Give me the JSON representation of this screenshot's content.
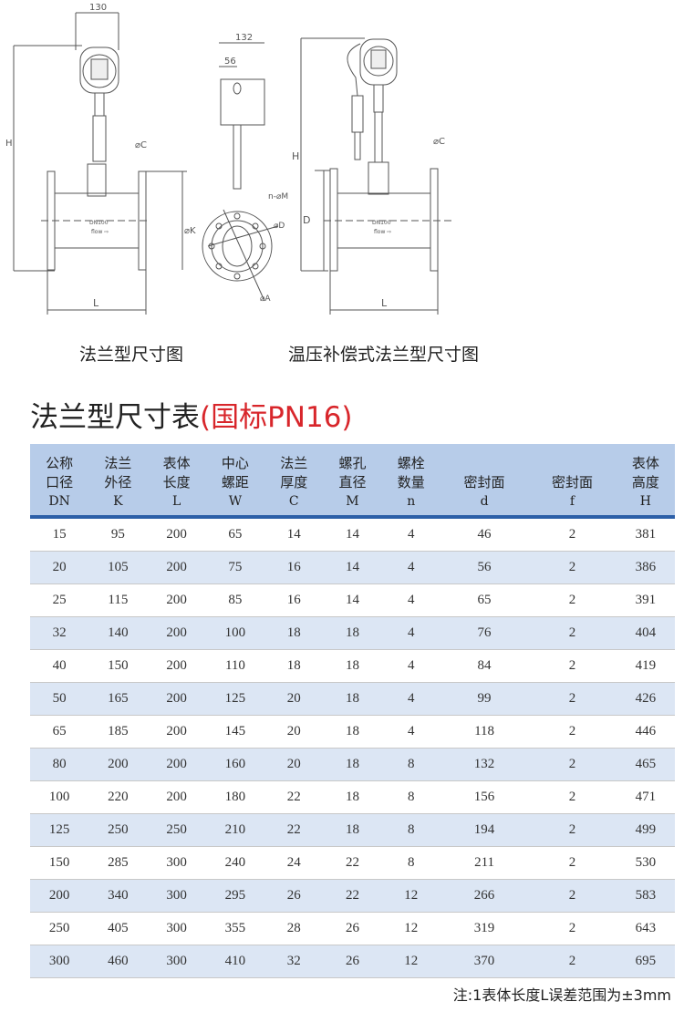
{
  "drawings": {
    "flange_dim_130": "130",
    "side_dim_132": "132",
    "side_dim_56": "56",
    "label_H": "H",
    "label_L": "L",
    "label_C": "⌀C",
    "label_K": "⌀K",
    "label_D": "D",
    "label_phiD": "⌀D",
    "label_nM": "n-⌀M",
    "label_A": "⌀A",
    "pipe_mark": "DN100",
    "flow_mark": "flow ⇨"
  },
  "captions": {
    "flange": "法兰型尺寸图",
    "compensated": "温压补偿式法兰型尺寸图"
  },
  "table_title": {
    "main": "法兰型尺寸表",
    "suffix": "(国标PN16)"
  },
  "table": {
    "headers": [
      {
        "l1": "公称",
        "l2": "口径",
        "sym": "DN"
      },
      {
        "l1": "法兰",
        "l2": "外径",
        "sym": "K"
      },
      {
        "l1": "表体",
        "l2": "长度",
        "sym": "L"
      },
      {
        "l1": "中心",
        "l2": "螺距",
        "sym": "W"
      },
      {
        "l1": "法兰",
        "l2": "厚度",
        "sym": "C"
      },
      {
        "l1": "螺孔",
        "l2": "直径",
        "sym": "M"
      },
      {
        "l1": "螺栓",
        "l2": "数量",
        "sym": "n"
      },
      {
        "l1": "",
        "l2": "密封面",
        "sym": "d"
      },
      {
        "l1": "",
        "l2": "密封面",
        "sym": "f"
      },
      {
        "l1": "表体",
        "l2": "高度",
        "sym": "H"
      }
    ],
    "rows": [
      [
        "15",
        "95",
        "200",
        "65",
        "14",
        "14",
        "4",
        "46",
        "2",
        "381"
      ],
      [
        "20",
        "105",
        "200",
        "75",
        "16",
        "14",
        "4",
        "56",
        "2",
        "386"
      ],
      [
        "25",
        "115",
        "200",
        "85",
        "16",
        "14",
        "4",
        "65",
        "2",
        "391"
      ],
      [
        "32",
        "140",
        "200",
        "100",
        "18",
        "18",
        "4",
        "76",
        "2",
        "404"
      ],
      [
        "40",
        "150",
        "200",
        "110",
        "18",
        "18",
        "4",
        "84",
        "2",
        "419"
      ],
      [
        "50",
        "165",
        "200",
        "125",
        "20",
        "18",
        "4",
        "99",
        "2",
        "426"
      ],
      [
        "65",
        "185",
        "200",
        "145",
        "20",
        "18",
        "4",
        "118",
        "2",
        "446"
      ],
      [
        "80",
        "200",
        "200",
        "160",
        "20",
        "18",
        "8",
        "132",
        "2",
        "465"
      ],
      [
        "100",
        "220",
        "200",
        "180",
        "22",
        "18",
        "8",
        "156",
        "2",
        "471"
      ],
      [
        "125",
        "250",
        "250",
        "210",
        "22",
        "18",
        "8",
        "194",
        "2",
        "499"
      ],
      [
        "150",
        "285",
        "300",
        "240",
        "24",
        "22",
        "8",
        "211",
        "2",
        "530"
      ],
      [
        "200",
        "340",
        "300",
        "295",
        "26",
        "22",
        "12",
        "266",
        "2",
        "583"
      ],
      [
        "250",
        "405",
        "300",
        "355",
        "28",
        "26",
        "12",
        "319",
        "2",
        "643"
      ],
      [
        "300",
        "460",
        "300",
        "410",
        "32",
        "26",
        "12",
        "370",
        "2",
        "695"
      ]
    ]
  },
  "note": "注:1表体长度L误差范围为±3mm",
  "colors": {
    "header_bg": "#b7cce9",
    "header_rule": "#2c5fa8",
    "alt_row": "#dce6f4",
    "accent_red": "#d8262b"
  }
}
